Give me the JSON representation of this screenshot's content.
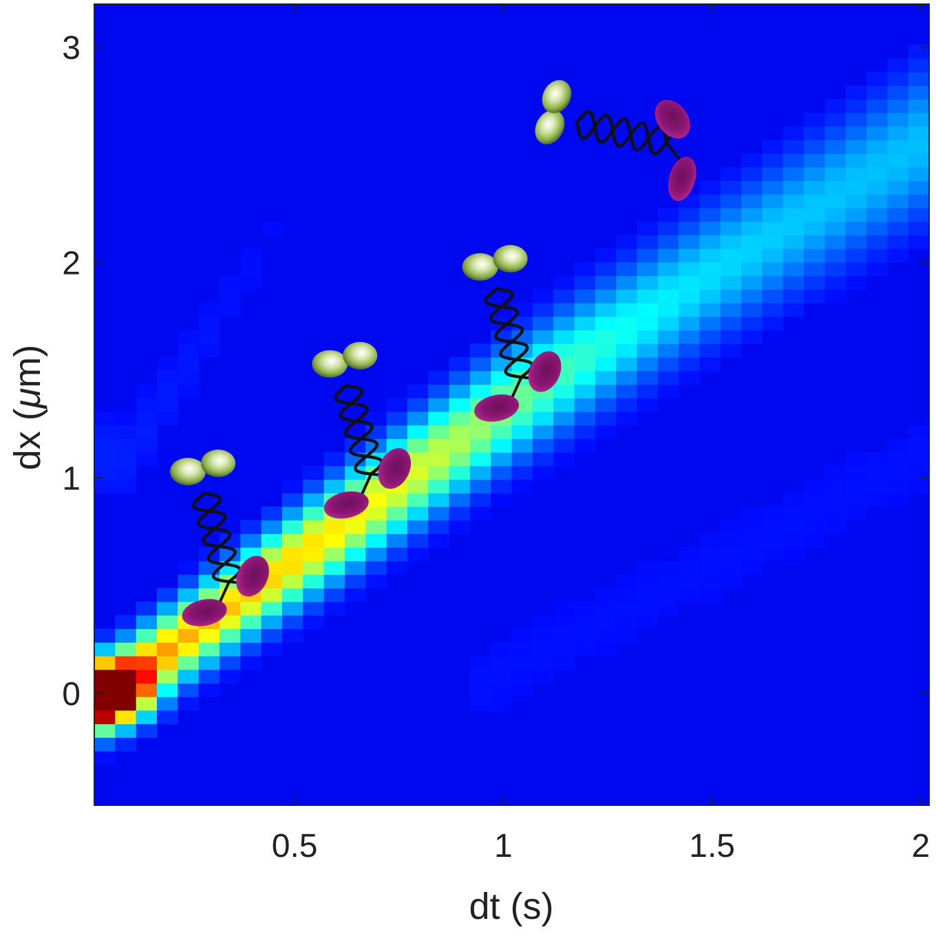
{
  "chart_data": {
    "type": "heatmap",
    "title": "",
    "xlabel": "dt (s)",
    "ylabel_prefix": "dx (",
    "ylabel_mu": "μ",
    "ylabel_suffix": "m)",
    "xlim": [
      0.02,
      2.02
    ],
    "ylim": [
      -0.52,
      3.2
    ],
    "xticks": [
      0.5,
      1,
      1.5,
      2
    ],
    "xtick_labels": [
      "0.5",
      "1",
      "1.5",
      "2"
    ],
    "yticks": [
      0,
      1,
      2,
      3
    ],
    "ytick_labels": [
      "0",
      "1",
      "2",
      "3"
    ],
    "grid": false,
    "colormap": "jet",
    "bins": {
      "nx": 40,
      "ny": 59
    },
    "ridge": {
      "description_points": [
        [
          0.05,
          0.0
        ],
        [
          0.5,
          0.62
        ],
        [
          1.0,
          1.32
        ],
        [
          1.5,
          1.95
        ],
        [
          2.0,
          2.55
        ]
      ],
      "peak_dt": 0.05,
      "peak_dx": 0.0
    },
    "secondary_band": {
      "points": [
        [
          0.1,
          1.1
        ],
        [
          0.5,
          2.3
        ],
        [
          0.8,
          3.1
        ]
      ]
    },
    "annotation_motors": [
      {
        "dt": 0.33,
        "dx": 0.55,
        "name": "motor-illustration-1"
      },
      {
        "dt": 0.67,
        "dx": 1.05,
        "name": "motor-illustration-2"
      },
      {
        "dt": 1.03,
        "dx": 1.5,
        "name": "motor-illustration-3"
      },
      {
        "dt": 1.37,
        "dx": 2.55,
        "name": "motor-illustration-4",
        "rotate": -62
      }
    ],
    "colors": {
      "background": "#0008ef",
      "head": "#8fb04a",
      "foot": "#8a1673",
      "helix": "#111111"
    }
  }
}
